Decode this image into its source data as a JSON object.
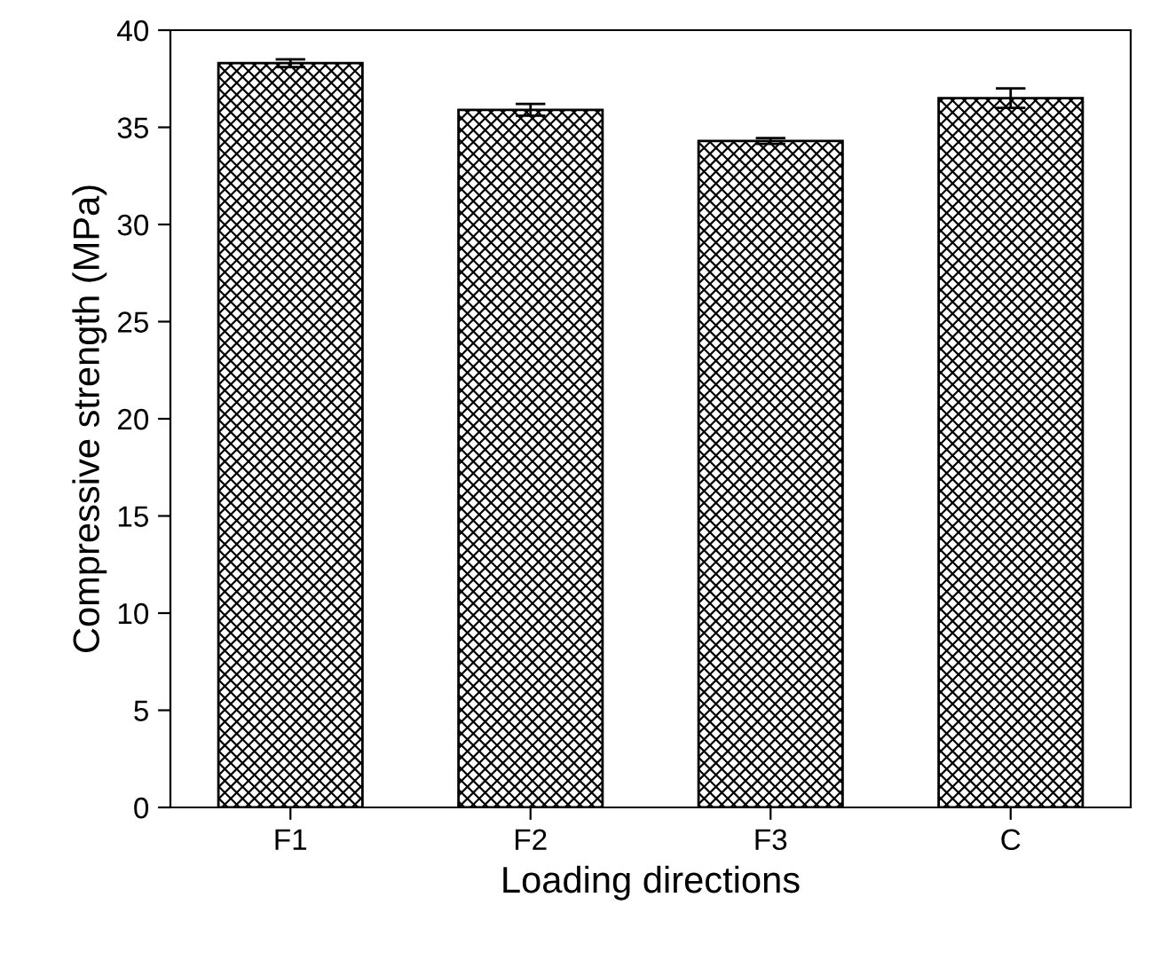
{
  "chart_data": {
    "type": "bar",
    "xlabel": "Loading directions",
    "ylabel": "Compressive strength (MPa)",
    "categories": [
      "F1",
      "F2",
      "F3",
      "C"
    ],
    "values": [
      38.3,
      35.9,
      34.3,
      36.5
    ],
    "errors": [
      0.2,
      0.3,
      0.15,
      0.5
    ],
    "color": "#000000",
    "ylim": [
      0,
      40
    ],
    "yticks": [
      0,
      5,
      10,
      15,
      20,
      25,
      30,
      35,
      40
    ],
    "grid": false
  }
}
